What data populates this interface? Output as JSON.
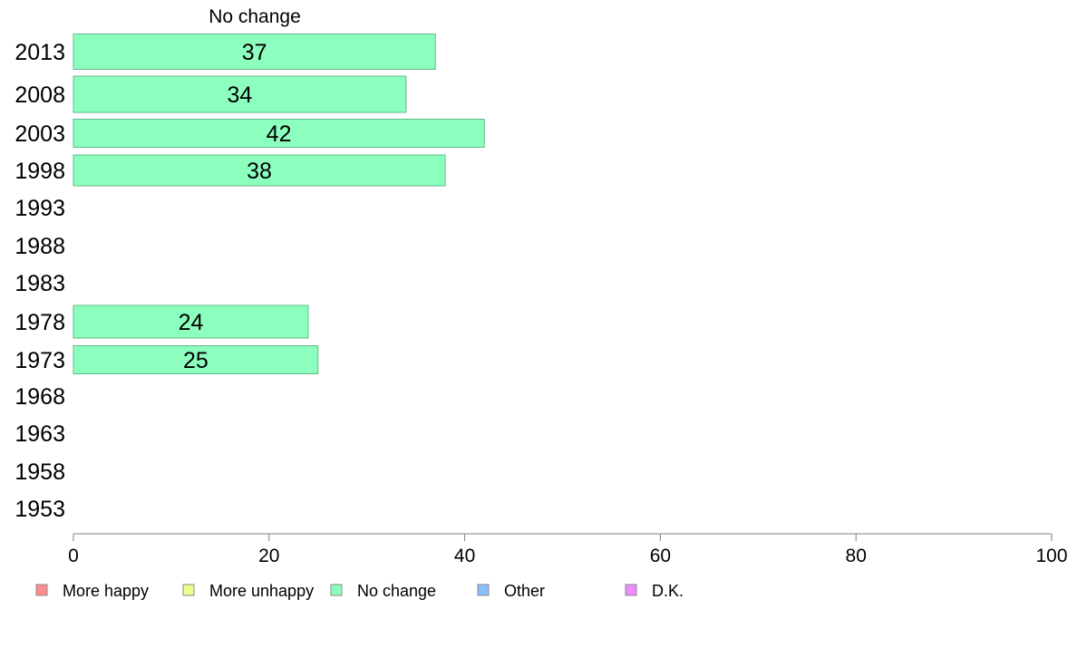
{
  "chart_data": {
    "type": "bar",
    "orientation": "horizontal",
    "title": "No change",
    "xlabel": "",
    "ylabel": "",
    "xlim": [
      0,
      100
    ],
    "x_ticks": [
      0,
      20,
      40,
      60,
      80,
      100
    ],
    "grid": false,
    "categories": [
      "2013",
      "2008",
      "2003",
      "1998",
      "1993",
      "1988",
      "1983",
      "1978",
      "1973",
      "1968",
      "1963",
      "1958",
      "1953"
    ],
    "series": [
      {
        "name": "No change",
        "color": "#8CFFBF",
        "values": [
          37,
          34,
          42,
          38,
          null,
          null,
          null,
          24,
          25,
          null,
          null,
          null,
          null
        ]
      }
    ],
    "legend": {
      "placement": "bottom",
      "entries": [
        {
          "label": "More happy",
          "color": "#FF8C8C"
        },
        {
          "label": "More unhappy",
          "color": "#EBFF8C"
        },
        {
          "label": "No change",
          "color": "#8CFFBF"
        },
        {
          "label": "Other",
          "color": "#8CBFFF"
        },
        {
          "label": "D.K.",
          "color": "#EB8CFF"
        }
      ]
    }
  }
}
